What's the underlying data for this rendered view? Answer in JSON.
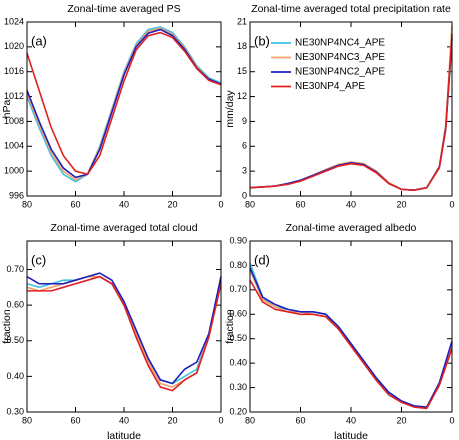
{
  "chart_data": [
    {
      "type": "line",
      "title": "Zonal-time averaged PS",
      "ylabel": "hPa",
      "annotation": "(a)",
      "x": [
        80,
        75,
        70,
        65,
        60,
        55,
        50,
        45,
        40,
        35,
        30,
        25,
        20,
        15,
        10,
        5,
        0
      ],
      "xlim": [
        80,
        0
      ],
      "xticks": [
        80,
        60,
        40,
        20,
        0
      ],
      "ylim": [
        996,
        1024
      ],
      "yticks": [
        996,
        1000,
        1004,
        1008,
        1012,
        1016,
        1020,
        1024
      ],
      "series": [
        {
          "color": "#3ec3e0",
          "values": [
            1012,
            1007,
            1002.5,
            999.5,
            998.3,
            999.5,
            1004,
            1010,
            1016,
            1020.5,
            1022.8,
            1023.2,
            1022.3,
            1020,
            1017,
            1015,
            1014.2
          ]
        },
        {
          "color": "#f5a066",
          "values": [
            1012.5,
            1007.5,
            1003,
            1000,
            998.6,
            999.6,
            1003.8,
            1009.8,
            1015.8,
            1020.2,
            1022.5,
            1023,
            1022,
            1019.8,
            1016.8,
            1014.8,
            1014
          ]
        },
        {
          "color": "#1e1ebe",
          "values": [
            1013,
            1008,
            1003.5,
            1000.5,
            999,
            999.5,
            1003.5,
            1009.5,
            1015.5,
            1020,
            1022.2,
            1022.8,
            1021.8,
            1019.6,
            1016.6,
            1014.8,
            1014
          ]
        },
        {
          "color": "#e02020",
          "values": [
            1019,
            1013,
            1007,
            1002.5,
            1000,
            999.5,
            1002.5,
            1008.5,
            1014.5,
            1019.5,
            1021.8,
            1022.3,
            1021.5,
            1019.3,
            1016.5,
            1014.6,
            1013.9
          ]
        }
      ]
    },
    {
      "type": "line",
      "title": "Zonal-time averaged total precipitation rate",
      "ylabel": "mm/day",
      "annotation": "(b)",
      "legend": "upper center",
      "x": [
        80,
        75,
        70,
        65,
        60,
        55,
        50,
        45,
        40,
        35,
        30,
        25,
        20,
        15,
        10,
        5,
        2.5,
        0
      ],
      "xlim": [
        80,
        0
      ],
      "xticks": [
        80,
        60,
        40,
        20,
        0
      ],
      "ylim": [
        0,
        21
      ],
      "yticks": [
        0,
        3,
        6,
        9,
        12,
        15,
        18,
        21
      ],
      "series": [
        {
          "name": "NE30NP4NC4_APE",
          "color": "#3ec3e0",
          "values": [
            1.0,
            1.1,
            1.2,
            1.5,
            1.9,
            2.5,
            3.2,
            3.8,
            4.1,
            3.9,
            3.0,
            1.6,
            0.8,
            0.7,
            1.0,
            3.5,
            8,
            18.5
          ]
        },
        {
          "name": "NE30NP4NC3_APE",
          "color": "#f5a066",
          "values": [
            1.0,
            1.1,
            1.2,
            1.5,
            1.9,
            2.5,
            3.2,
            3.8,
            4.1,
            3.9,
            3.0,
            1.6,
            0.8,
            0.7,
            1.0,
            3.6,
            8.5,
            20.5
          ]
        },
        {
          "name": "NE30NP4NC2_APE",
          "color": "#1e1ebe",
          "values": [
            1.0,
            1.1,
            1.2,
            1.5,
            1.9,
            2.5,
            3.1,
            3.7,
            4.0,
            3.8,
            2.9,
            1.5,
            0.8,
            0.7,
            1.0,
            3.5,
            8.2,
            19
          ]
        },
        {
          "name": "NE30NP4_APE",
          "color": "#e02020",
          "values": [
            1.0,
            1.1,
            1.2,
            1.4,
            1.8,
            2.4,
            3.0,
            3.6,
            3.9,
            3.7,
            2.8,
            1.5,
            0.8,
            0.7,
            1.0,
            3.4,
            8,
            19.5
          ]
        }
      ]
    },
    {
      "type": "line",
      "title": "Zonal-time averaged total cloud",
      "ylabel": "fraction",
      "xlabel": "latitude",
      "annotation": "(c)",
      "x": [
        80,
        75,
        70,
        65,
        60,
        55,
        50,
        45,
        40,
        35,
        30,
        25,
        20,
        15,
        10,
        5,
        0
      ],
      "xlim": [
        80,
        0
      ],
      "xticks": [
        80,
        60,
        40,
        20,
        0
      ],
      "ylim": [
        0.3,
        0.78
      ],
      "yticks": [
        {
          "value": 0.3,
          "label": "0.30"
        },
        {
          "value": 0.4,
          "label": "0.40"
        },
        {
          "value": 0.5,
          "label": "0.50"
        },
        {
          "value": 0.6,
          "label": "0.60"
        },
        {
          "value": 0.7,
          "label": "0.70"
        }
      ],
      "series": [
        {
          "color": "#3ec3e0",
          "values": [
            0.66,
            0.65,
            0.66,
            0.67,
            0.67,
            0.68,
            0.68,
            0.66,
            0.6,
            0.52,
            0.45,
            0.39,
            0.38,
            0.4,
            0.42,
            0.52,
            0.68
          ]
        },
        {
          "color": "#f5a066",
          "values": [
            0.65,
            0.64,
            0.65,
            0.66,
            0.67,
            0.68,
            0.68,
            0.66,
            0.6,
            0.52,
            0.44,
            0.38,
            0.37,
            0.39,
            0.41,
            0.52,
            0.67
          ]
        },
        {
          "color": "#1e1ebe",
          "values": [
            0.68,
            0.66,
            0.66,
            0.66,
            0.67,
            0.68,
            0.69,
            0.67,
            0.61,
            0.53,
            0.45,
            0.39,
            0.38,
            0.42,
            0.44,
            0.52,
            0.68
          ]
        },
        {
          "color": "#e02020",
          "values": [
            0.64,
            0.64,
            0.64,
            0.65,
            0.66,
            0.67,
            0.68,
            0.66,
            0.6,
            0.51,
            0.43,
            0.37,
            0.36,
            0.39,
            0.41,
            0.51,
            0.66
          ]
        }
      ]
    },
    {
      "type": "line",
      "title": "Zonal-time averaged albedo",
      "ylabel": "fraction",
      "xlabel": "latitude",
      "annotation": "(d)",
      "x": [
        80,
        75,
        70,
        65,
        60,
        55,
        50,
        45,
        40,
        35,
        30,
        25,
        20,
        15,
        10,
        5,
        0
      ],
      "xlim": [
        80,
        0
      ],
      "xticks": [
        80,
        60,
        40,
        20,
        0
      ],
      "ylim": [
        0.2,
        0.9
      ],
      "yticks": [
        {
          "value": 0.2,
          "label": "0.20"
        },
        {
          "value": 0.3,
          "label": "0.30"
        },
        {
          "value": 0.4,
          "label": "0.40"
        },
        {
          "value": 0.5,
          "label": "0.50"
        },
        {
          "value": 0.6,
          "label": "0.60"
        },
        {
          "value": 0.7,
          "label": "0.70"
        },
        {
          "value": 0.8,
          "label": "0.80"
        },
        {
          "value": 0.9,
          "label": "0.90"
        }
      ],
      "series": [
        {
          "color": "#3ec3e0",
          "values": [
            0.81,
            0.67,
            0.63,
            0.62,
            0.61,
            0.61,
            0.6,
            0.55,
            0.48,
            0.41,
            0.34,
            0.28,
            0.245,
            0.225,
            0.22,
            0.32,
            0.48
          ]
        },
        {
          "color": "#f5a066",
          "values": [
            0.78,
            0.66,
            0.63,
            0.61,
            0.61,
            0.6,
            0.59,
            0.54,
            0.47,
            0.4,
            0.33,
            0.27,
            0.24,
            0.225,
            0.22,
            0.31,
            0.47
          ]
        },
        {
          "color": "#1e1ebe",
          "values": [
            0.79,
            0.67,
            0.64,
            0.62,
            0.61,
            0.61,
            0.6,
            0.55,
            0.48,
            0.41,
            0.34,
            0.28,
            0.245,
            0.225,
            0.22,
            0.32,
            0.49
          ]
        },
        {
          "color": "#e02020",
          "values": [
            0.74,
            0.65,
            0.62,
            0.61,
            0.6,
            0.6,
            0.59,
            0.54,
            0.47,
            0.4,
            0.33,
            0.27,
            0.24,
            0.22,
            0.215,
            0.31,
            0.46
          ]
        }
      ]
    }
  ]
}
